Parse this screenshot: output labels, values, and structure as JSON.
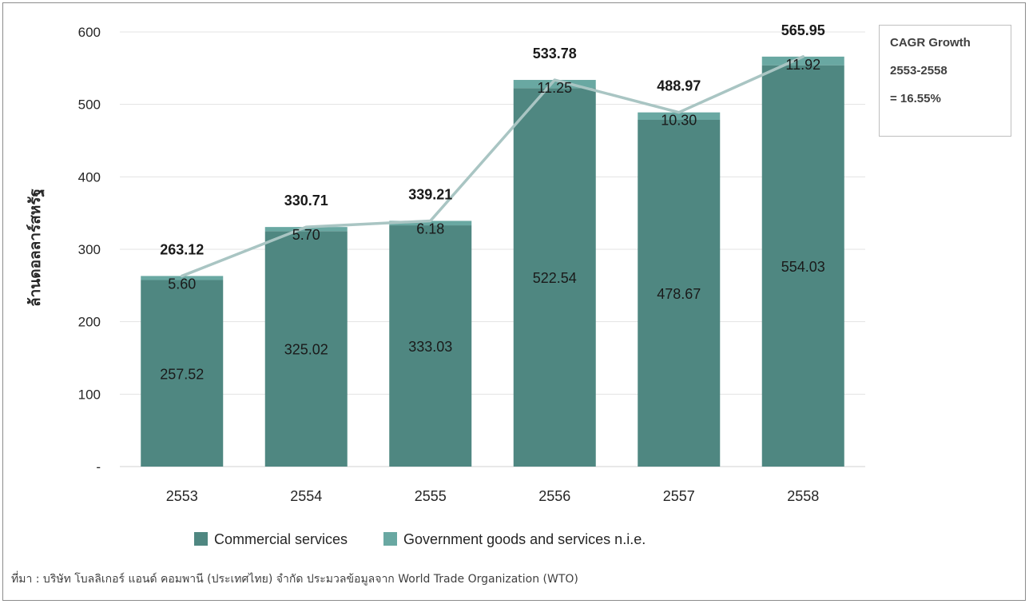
{
  "chart_data": {
    "type": "bar",
    "stacked": true,
    "categories": [
      "2553",
      "2554",
      "2555",
      "2556",
      "2557",
      "2558"
    ],
    "series": [
      {
        "name": "Commercial services",
        "values": [
          257.52,
          325.02,
          333.03,
          522.54,
          478.67,
          554.03
        ],
        "color": "#4f8781"
      },
      {
        "name": "Government goods and services n.i.e.",
        "values": [
          5.6,
          5.7,
          6.18,
          11.25,
          10.3,
          11.92
        ],
        "color": "#69a8a2"
      }
    ],
    "totals": [
      263.12,
      330.71,
      339.21,
      533.78,
      488.97,
      565.95
    ],
    "total_labels": [
      "263.12",
      "330.71",
      "339.21",
      "533.78",
      "488.97",
      "565.95"
    ],
    "commercial_labels": [
      "257.52",
      "325.02",
      "333.03",
      "522.54",
      "478.67",
      "554.03"
    ],
    "government_labels": [
      "5.60",
      "5.70",
      "6.18",
      "11.25",
      "10.30",
      "11.92"
    ],
    "trend_line": {
      "values": [
        263.12,
        330.71,
        339.21,
        533.78,
        488.97,
        565.95
      ],
      "color": "#a9c5c3"
    },
    "ylabel": "ล้านดอลลาร์สหรัฐ",
    "ylim": [
      0,
      600
    ],
    "yticks": [
      0,
      100,
      200,
      300,
      400,
      500,
      600
    ],
    "ytick_labels": [
      "-",
      "100",
      "200",
      "300",
      "400",
      "500",
      "600"
    ],
    "grid": true,
    "legend_position": "bottom"
  },
  "cagr": {
    "line1": "CAGR Growth",
    "line2": "2553-2558",
    "line3": "= 16.55%"
  },
  "source": "ที่มา : บริษัท โบลลิเกอร์ แอนด์ คอมพานี (ประเทศไทย) จำกัด ประมวลข้อมูลจาก World Trade Organization (WTO)"
}
